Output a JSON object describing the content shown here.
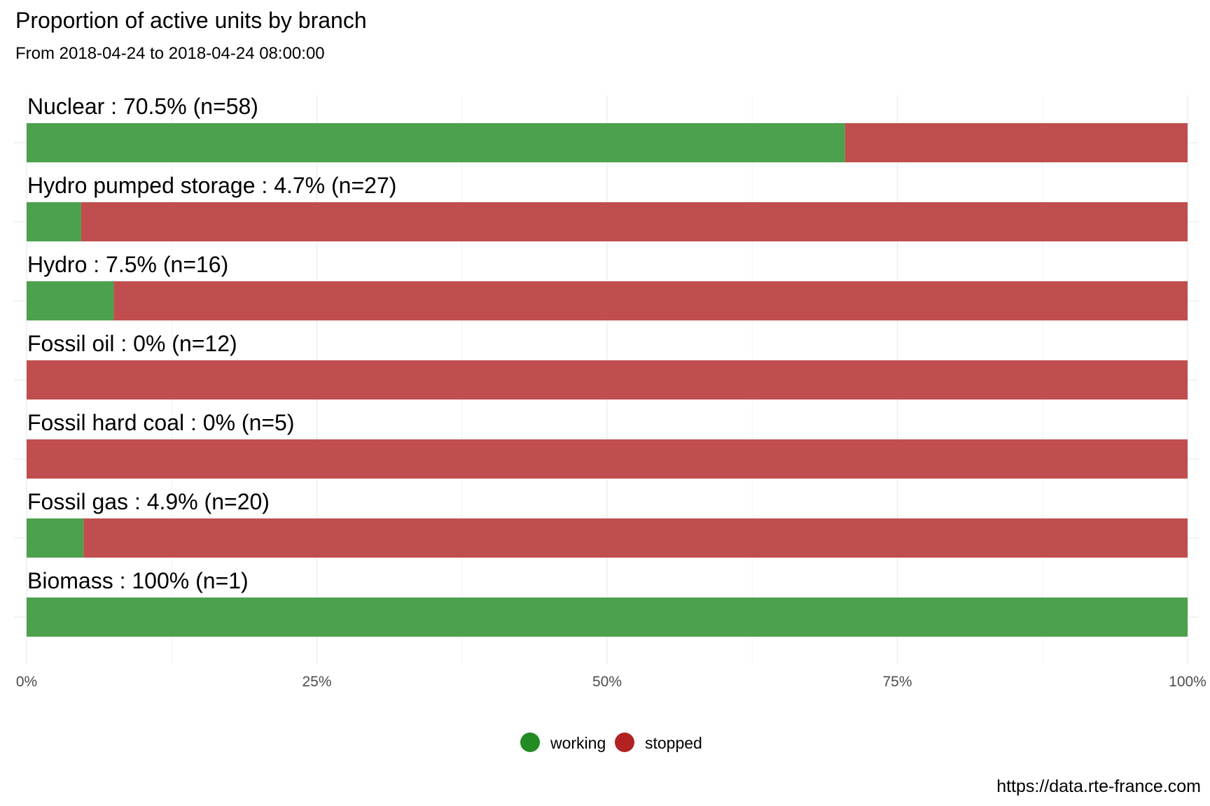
{
  "chart_data": {
    "type": "bar",
    "orientation": "horizontal",
    "stacked": true,
    "title": "Proportion of active units by branch",
    "subtitle": "From 2018-04-24 to 2018-04-24 08:00:00",
    "caption": "https://data.rte-france.com",
    "xlim": [
      0,
      1
    ],
    "x_ticks": [
      "0%",
      "25%",
      "50%",
      "75%",
      "100%"
    ],
    "grid": true,
    "legend_position": "bottom",
    "categories": [
      {
        "label": "Nuclear : 70.5% (n=58)",
        "working": 0.705
      },
      {
        "label": "Hydro pumped storage : 4.7% (n=27)",
        "working": 0.047
      },
      {
        "label": "Hydro : 7.5% (n=16)",
        "working": 0.075
      },
      {
        "label": "Fossil oil : 0% (n=12)",
        "working": 0.0
      },
      {
        "label": "Fossil hard coal : 0% (n=5)",
        "working": 0.0
      },
      {
        "label": "Fossil gas : 4.9% (n=20)",
        "working": 0.049
      },
      {
        "label": "Biomass : 100% (n=1)",
        "working": 1.0
      }
    ],
    "series": [
      {
        "name": "working",
        "color": "#4ca14c",
        "legend_color": "#228b22"
      },
      {
        "name": "stopped",
        "color": "#c14e4e",
        "legend_color": "#b22222"
      }
    ]
  }
}
